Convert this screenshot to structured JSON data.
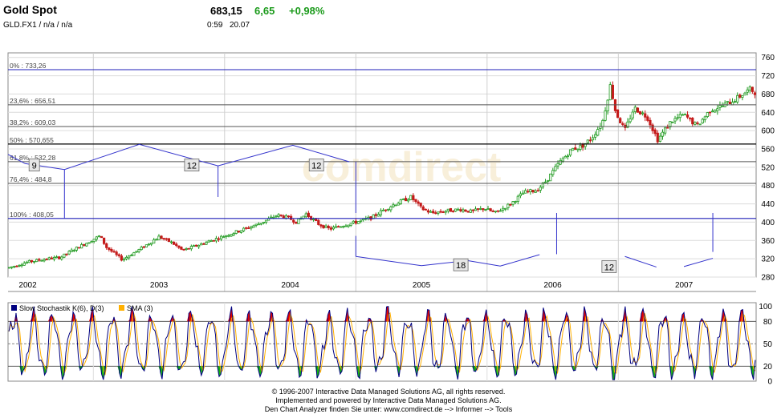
{
  "header": {
    "title": "Gold Spot",
    "symbol_line": "GLD.FX1  /  n/a  /  n/a",
    "price": "683,15",
    "change": "6,65",
    "change_pct": "+0,98%",
    "time": "0:59",
    "date": "20.07"
  },
  "footer": {
    "line1": "© 1996-2007 Interactive Data Managed Solutions AG, all rights reserved.",
    "line2": "Implemented and powered by Interactive Data Managed Solutions AG.",
    "line3": "Den Chart Analyzer finden Sie unter: www.comdirect.de --> Informer --> Tools"
  },
  "watermark": "comdirect",
  "colors": {
    "up_candle": "#1f9a1f",
    "down_candle": "#c41a1a",
    "fib_line": "#1f1fb8",
    "cycle_line": "#3333cc",
    "stoch_k": "#000080",
    "stoch_d": "#ffb000",
    "overbought_fill": "#e00000",
    "oversold_fill": "#10b010"
  },
  "chart_data": [
    {
      "type": "candlestick",
      "title": "Gold Spot",
      "x_tick_labels": [
        "2002",
        "2003",
        "2004",
        "2005",
        "2006",
        "2007"
      ],
      "x_range": [
        2001.85,
        2007.55
      ],
      "y_ticks": [
        280,
        320,
        360,
        400,
        440,
        480,
        520,
        560,
        600,
        640,
        680,
        720,
        760
      ],
      "ylim": [
        280,
        770
      ],
      "grid": true,
      "fibonacci_levels": [
        {
          "label": "0% : 733,26",
          "value": 733.26
        },
        {
          "label": "23,6% : 656,51",
          "value": 656.51
        },
        {
          "label": "38,2% : 609,03",
          "value": 609.03
        },
        {
          "label": "50% : 570,655",
          "value": 570.655
        },
        {
          "label": "61,8% : 532,28",
          "value": 532.28
        },
        {
          "label": "76,4% : 484,8",
          "value": 484.8
        },
        {
          "label": "100% : 408,05",
          "value": 408.05
        }
      ],
      "cycle_labels": [
        {
          "label": "9",
          "x": 2002.05,
          "y": 524
        },
        {
          "label": "12",
          "x": 2003.25,
          "y": 524
        },
        {
          "label": "12",
          "x": 2004.2,
          "y": 524
        },
        {
          "label": "18",
          "x": 2005.3,
          "y": 306
        },
        {
          "label": "12",
          "x": 2006.43,
          "y": 302
        }
      ],
      "price_path": [
        [
          2001.85,
          300
        ],
        [
          2002.0,
          313
        ],
        [
          2002.15,
          320
        ],
        [
          2002.25,
          323
        ],
        [
          2002.35,
          340
        ],
        [
          2002.45,
          355
        ],
        [
          2002.55,
          370
        ],
        [
          2002.6,
          345
        ],
        [
          2002.72,
          318
        ],
        [
          2002.85,
          340
        ],
        [
          2003.0,
          368
        ],
        [
          2003.1,
          355
        ],
        [
          2003.18,
          338
        ],
        [
          2003.3,
          350
        ],
        [
          2003.45,
          365
        ],
        [
          2003.6,
          380
        ],
        [
          2003.75,
          395
        ],
        [
          2003.9,
          415
        ],
        [
          2003.98,
          410
        ],
        [
          2004.05,
          400
        ],
        [
          2004.12,
          418
        ],
        [
          2004.22,
          395
        ],
        [
          2004.3,
          385
        ],
        [
          2004.4,
          393
        ],
        [
          2004.5,
          400
        ],
        [
          2004.62,
          410
        ],
        [
          2004.72,
          428
        ],
        [
          2004.8,
          440
        ],
        [
          2004.92,
          455
        ],
        [
          2005.0,
          430
        ],
        [
          2005.08,
          420
        ],
        [
          2005.2,
          425
        ],
        [
          2005.3,
          428
        ],
        [
          2005.38,
          423
        ],
        [
          2005.48,
          430
        ],
        [
          2005.56,
          420
        ],
        [
          2005.68,
          440
        ],
        [
          2005.78,
          465
        ],
        [
          2005.88,
          470
        ],
        [
          2005.95,
          490
        ],
        [
          2006.05,
          530
        ],
        [
          2006.15,
          560
        ],
        [
          2006.22,
          565
        ],
        [
          2006.3,
          585
        ],
        [
          2006.38,
          620
        ],
        [
          2006.44,
          700
        ],
        [
          2006.48,
          640
        ],
        [
          2006.55,
          600
        ],
        [
          2006.62,
          650
        ],
        [
          2006.72,
          630
        ],
        [
          2006.8,
          580
        ],
        [
          2006.9,
          620
        ],
        [
          2007.0,
          635
        ],
        [
          2007.1,
          610
        ],
        [
          2007.2,
          645
        ],
        [
          2007.3,
          655
        ],
        [
          2007.4,
          670
        ],
        [
          2007.5,
          690
        ],
        [
          2007.55,
          683
        ]
      ]
    },
    {
      "type": "line",
      "title": "Slow Stochastik K(6), D(3)",
      "series": [
        {
          "name": "Slow Stochastik K(6), D(3)"
        },
        {
          "name": "SMA (3)"
        }
      ],
      "y_ticks": [
        0,
        20,
        50,
        80,
        100
      ],
      "ylim": [
        0,
        105
      ],
      "overbought": 80,
      "oversold": 20,
      "grid": true
    }
  ]
}
